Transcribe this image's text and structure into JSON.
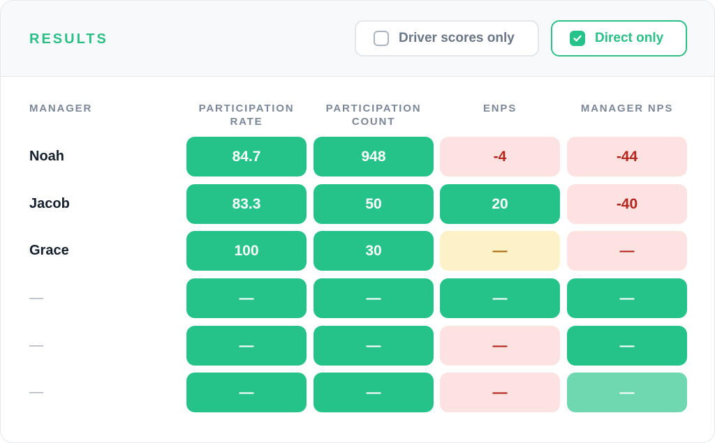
{
  "header": {
    "title": "RESULTS",
    "toggle_driver": {
      "label": "Driver scores only",
      "checked": false
    },
    "toggle_direct": {
      "label": "Direct only",
      "checked": true
    }
  },
  "columns": [
    {
      "line1": "MANAGER",
      "line2": ""
    },
    {
      "line1": "PARTICIPATION",
      "line2": "RATE"
    },
    {
      "line1": "PARTICIPATION",
      "line2": "COUNT"
    },
    {
      "line1": "ENPS",
      "line2": ""
    },
    {
      "line1": "MANAGER NPS",
      "line2": ""
    }
  ],
  "rows": [
    {
      "manager": "Noah",
      "cells": [
        {
          "value": "84.7",
          "tone": "green"
        },
        {
          "value": "948",
          "tone": "green"
        },
        {
          "value": "-4",
          "tone": "pink"
        },
        {
          "value": "-44",
          "tone": "pink"
        }
      ]
    },
    {
      "manager": "Jacob",
      "cells": [
        {
          "value": "83.3",
          "tone": "green"
        },
        {
          "value": "50",
          "tone": "green"
        },
        {
          "value": "20",
          "tone": "green"
        },
        {
          "value": "-40",
          "tone": "pink"
        }
      ]
    },
    {
      "manager": "Grace",
      "cells": [
        {
          "value": "100",
          "tone": "green"
        },
        {
          "value": "30",
          "tone": "green"
        },
        {
          "value": "—",
          "tone": "yellow"
        },
        {
          "value": "—",
          "tone": "pink"
        }
      ]
    },
    {
      "manager": "—",
      "cells": [
        {
          "value": "—",
          "tone": "green"
        },
        {
          "value": "—",
          "tone": "green"
        },
        {
          "value": "—",
          "tone": "green"
        },
        {
          "value": "—",
          "tone": "green"
        }
      ]
    },
    {
      "manager": "—",
      "cells": [
        {
          "value": "—",
          "tone": "green"
        },
        {
          "value": "—",
          "tone": "green"
        },
        {
          "value": "—",
          "tone": "pink"
        },
        {
          "value": "—",
          "tone": "green"
        }
      ]
    },
    {
      "manager": "—",
      "cells": [
        {
          "value": "—",
          "tone": "green"
        },
        {
          "value": "—",
          "tone": "green"
        },
        {
          "value": "—",
          "tone": "pink"
        },
        {
          "value": "—",
          "tone": "lightgreen"
        }
      ]
    }
  ],
  "colors": {
    "accent": "#2bbf85",
    "green": "#25c38a",
    "lightgreen": "#6fd8b0",
    "pink": "#fde2e2",
    "pink_text": "#b3261e",
    "yellow": "#fdf1c7",
    "yellow_text": "#b06a12"
  }
}
